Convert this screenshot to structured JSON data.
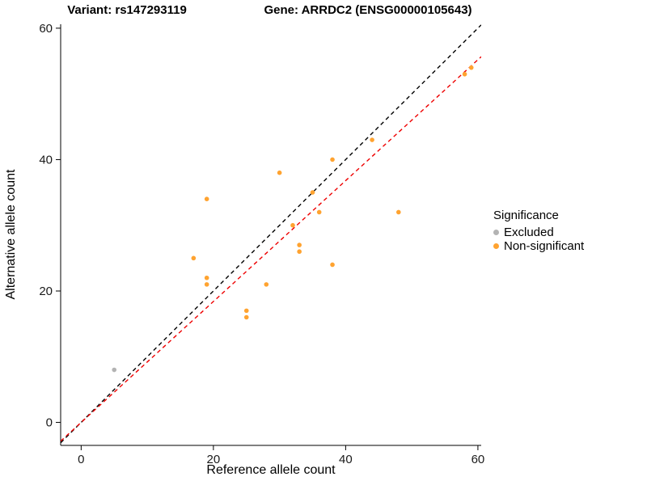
{
  "titles": {
    "variant": "Variant: rs147293119",
    "gene": "Gene: ARRDC2 (ENSG00000105643)"
  },
  "chart_data": {
    "type": "scatter",
    "xlabel": "Reference allele count",
    "ylabel": "Alternative allele count",
    "xlim": [
      -3.1,
      60.5
    ],
    "ylim": [
      -3.5,
      60.6
    ],
    "x_ticks": [
      0,
      20,
      40,
      60
    ],
    "y_ticks": [
      0,
      20,
      40,
      60
    ],
    "grid": false,
    "legend": {
      "title": "Significance",
      "position": "right",
      "entries": [
        {
          "label": "Excluded",
          "color": "#B3B3B3"
        },
        {
          "label": "Non-significant",
          "color": "#FFA330"
        }
      ]
    },
    "series": [
      {
        "name": "Excluded",
        "color": "#B3B3B3",
        "points": [
          [
            5,
            8
          ]
        ]
      },
      {
        "name": "Non-significant",
        "color": "#FFA330",
        "points": [
          [
            17,
            25
          ],
          [
            19,
            34
          ],
          [
            19,
            22
          ],
          [
            19,
            21
          ],
          [
            25,
            17
          ],
          [
            25,
            16
          ],
          [
            28,
            21
          ],
          [
            30,
            38
          ],
          [
            32,
            30
          ],
          [
            33,
            27
          ],
          [
            33,
            26
          ],
          [
            35,
            35
          ],
          [
            36,
            32
          ],
          [
            38,
            40
          ],
          [
            38,
            24
          ],
          [
            44,
            43
          ],
          [
            48,
            32
          ],
          [
            58,
            53
          ],
          [
            59,
            54
          ]
        ]
      }
    ],
    "lines": [
      {
        "name": "identity-line",
        "slope": 1,
        "intercept": 0,
        "color": "#000000",
        "dash": "5,4"
      },
      {
        "name": "fit-line",
        "slope": 0.92,
        "intercept": 0,
        "color": "#EE0000",
        "dash": "5,4"
      }
    ]
  }
}
